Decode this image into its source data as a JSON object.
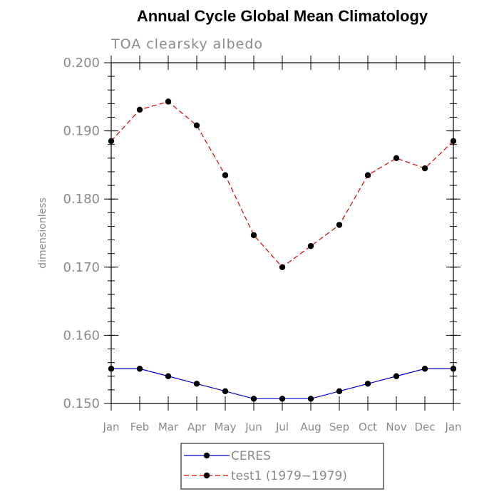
{
  "chart_data": {
    "type": "line",
    "title": "Annual Cycle Global Mean Climatology",
    "subtitle": "TOA clearsky albedo",
    "xlabel": "",
    "ylabel": "dimensionless",
    "categories": [
      "Jan",
      "Feb",
      "Mar",
      "Apr",
      "May",
      "Jun",
      "Jul",
      "Aug",
      "Sep",
      "Oct",
      "Nov",
      "Dec",
      "Jan"
    ],
    "ylim": [
      0.15,
      0.2
    ],
    "yticks": [
      "0.150",
      "0.160",
      "0.170",
      "0.180",
      "0.190",
      "0.200"
    ],
    "legend_position": "bottom-center",
    "series": [
      {
        "name": "CERES",
        "color": "#0000cc",
        "dash": "solid",
        "values": [
          0.1551,
          0.1551,
          0.154,
          0.1529,
          0.1518,
          0.1507,
          0.1507,
          0.1507,
          0.1518,
          0.1529,
          0.154,
          0.1551,
          0.1551
        ]
      },
      {
        "name": "test1 (1979−1979)",
        "color": "#dd0000",
        "dash": "dashed",
        "values": [
          0.1885,
          0.1931,
          0.1943,
          0.1908,
          0.1835,
          0.1747,
          0.17,
          0.1731,
          0.1762,
          0.1835,
          0.186,
          0.1845,
          0.1885
        ]
      }
    ]
  }
}
